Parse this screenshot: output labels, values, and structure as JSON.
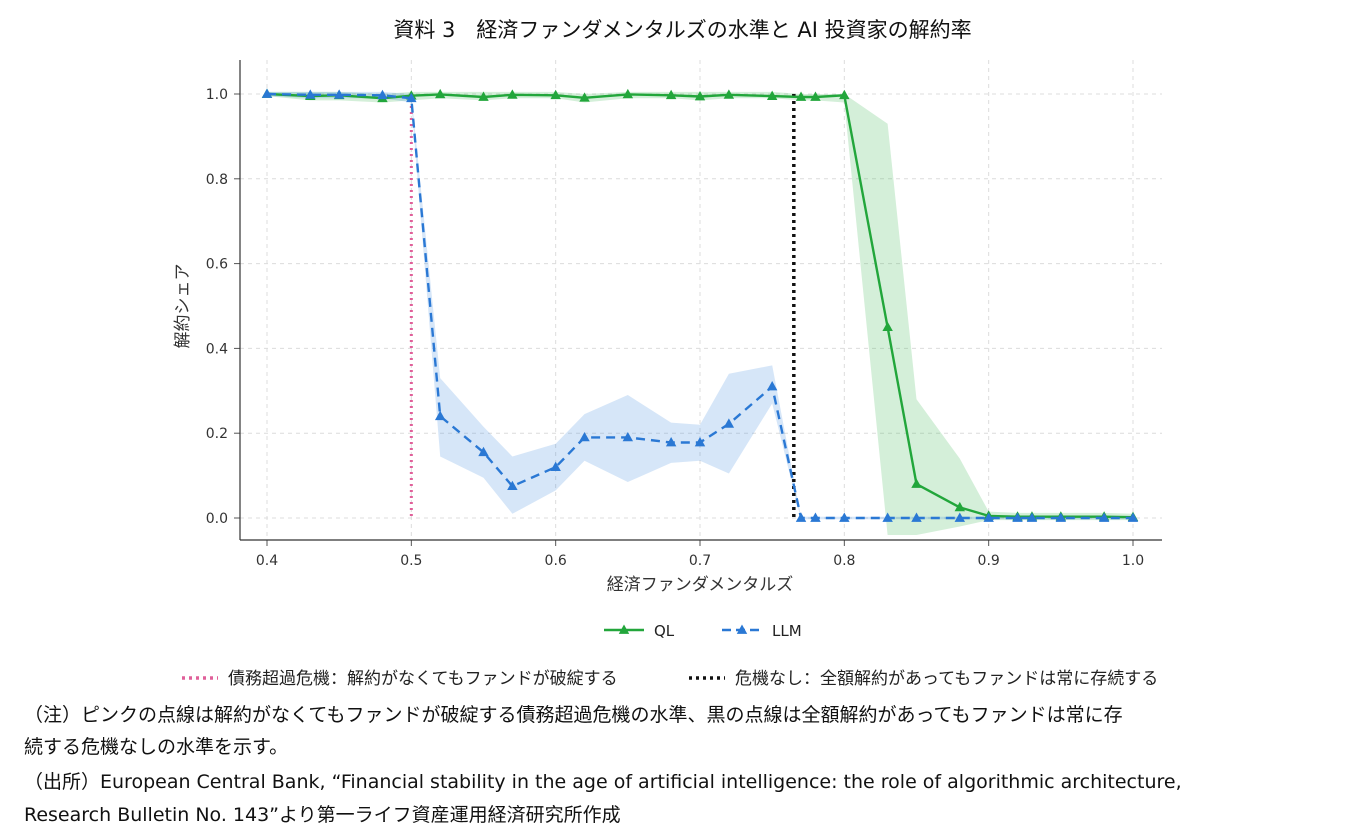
{
  "figure": {
    "title": "資料 3　経済ファンダメンタルズの水準と AI 投資家の解約率"
  },
  "chart_data": {
    "type": "line",
    "xlabel": "経済ファンダメンタルズ",
    "ylabel": "解約シェア",
    "xlim": [
      0.4,
      1.0
    ],
    "ylim": [
      -0.05,
      1.08
    ],
    "x_ticks": [
      "0.4",
      "0.5",
      "0.6",
      "0.7",
      "0.8",
      "0.9",
      "1.0"
    ],
    "y_ticks": [
      "0.0",
      "0.2",
      "0.4",
      "0.6",
      "0.8",
      "1.0"
    ],
    "grid": true,
    "legend_placement": "bottom-center",
    "x": [
      0.4,
      0.43,
      0.45,
      0.48,
      0.5,
      0.52,
      0.55,
      0.57,
      0.6,
      0.62,
      0.65,
      0.68,
      0.7,
      0.72,
      0.75,
      0.77,
      0.78,
      0.8,
      0.83,
      0.85,
      0.88,
      0.9,
      0.92,
      0.93,
      0.95,
      0.98,
      1.0
    ],
    "series": [
      {
        "name": "QL",
        "color": "#22a63b",
        "line": "solid",
        "marker": "triangle",
        "values": [
          1.0,
          0.995,
          0.997,
          0.99,
          0.996,
          0.999,
          0.993,
          0.998,
          0.997,
          0.991,
          0.999,
          0.997,
          0.994,
          0.998,
          0.995,
          0.993,
          0.993,
          0.997,
          0.45,
          0.08,
          0.025,
          0.005,
          0.003,
          0.003,
          0.003,
          0.003,
          0.002
        ],
        "band_lower": [
          0.995,
          0.985,
          0.985,
          0.98,
          0.985,
          0.99,
          0.985,
          0.99,
          0.99,
          0.98,
          0.99,
          0.99,
          0.985,
          0.99,
          0.99,
          0.985,
          0.985,
          0.98,
          -0.04,
          -0.04,
          -0.02,
          -0.005,
          -0.005,
          -0.005,
          -0.005,
          -0.005,
          -0.005
        ],
        "band_upper": [
          1.005,
          1.005,
          1.005,
          1.0,
          1.005,
          1.005,
          1.005,
          1.005,
          1.005,
          1.0,
          1.005,
          1.005,
          1.005,
          1.005,
          1.005,
          1.0,
          1.0,
          1.0,
          0.93,
          0.28,
          0.14,
          0.015,
          0.012,
          0.012,
          0.012,
          0.012,
          0.01
        ]
      },
      {
        "name": "LLM",
        "color": "#2a78d4",
        "line": "dashed",
        "marker": "triangle",
        "values": [
          1.0,
          0.998,
          0.998,
          0.997,
          0.99,
          0.24,
          0.155,
          0.075,
          0.12,
          0.19,
          0.19,
          0.178,
          0.178,
          0.222,
          0.31,
          0.0,
          0.0,
          0.0,
          0.0,
          0.0,
          0.0,
          0.0,
          0.0,
          0.0,
          0.0,
          0.0,
          0.0
        ],
        "band_lower": [
          0.995,
          0.99,
          0.99,
          0.99,
          0.98,
          0.145,
          0.095,
          0.01,
          0.065,
          0.135,
          0.085,
          0.13,
          0.135,
          0.105,
          0.27,
          -0.003,
          -0.003,
          -0.003,
          -0.003,
          -0.003,
          -0.003,
          -0.003,
          -0.003,
          -0.003,
          -0.003,
          -0.003,
          -0.003
        ],
        "band_upper": [
          1.005,
          1.005,
          1.005,
          1.005,
          1.0,
          0.33,
          0.215,
          0.145,
          0.175,
          0.245,
          0.29,
          0.225,
          0.22,
          0.34,
          0.36,
          0.003,
          0.003,
          0.003,
          0.003,
          0.003,
          0.003,
          0.003,
          0.003,
          0.003,
          0.003,
          0.003,
          0.003
        ]
      }
    ],
    "reference_lines": [
      {
        "x": 0.5,
        "color": "#e0609a",
        "label": "債務超過危機：解約がなくてもファンドが破綻する"
      },
      {
        "x": 0.765,
        "color": "#111111",
        "label": "危機なし：全額解約があってもファンドは常に存続する"
      }
    ]
  },
  "notes": {
    "note_line1": "（注）ピンクの点線は解約がなくてもファンドが破綻する債務超過危機の水準、黒の点線は全額解約があってもファンドは常に存",
    "note_line2": "続する危機なしの水準を示す。",
    "source_line1": "（出所）European Central Bank, “Financial stability in the age of artificial intelligence: the role of algorithmic architecture,",
    "source_line2": "Research Bulletin No. 143”より第一ライフ資産運用経済研究所作成"
  }
}
